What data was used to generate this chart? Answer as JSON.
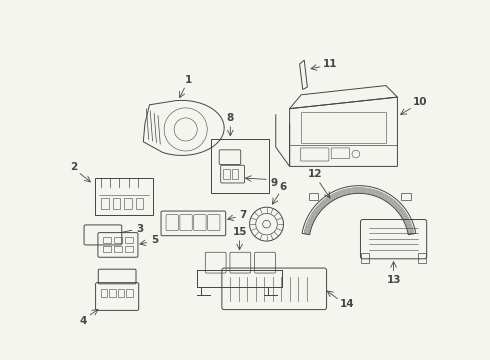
{
  "background_color": "#f5f5f0",
  "line_color": "#444444",
  "lw": 0.7
}
